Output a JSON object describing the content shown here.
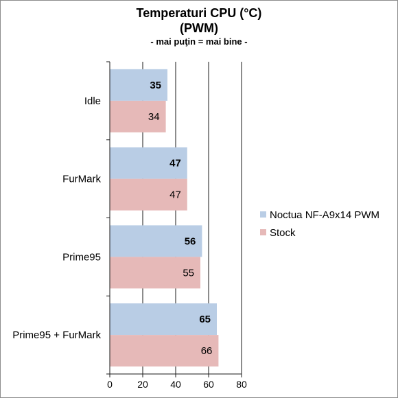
{
  "chart_data": {
    "type": "bar",
    "orientation": "horizontal",
    "title": "Temperaturi CPU (°C)",
    "subtitle": "(PWM)",
    "note": "- mai puţin = mai bine -",
    "categories": [
      "Idle",
      "FurMark",
      "Prime95",
      "Prime95 + FurMark"
    ],
    "series": [
      {
        "name": "Noctua NF-A9x14 PWM",
        "values": [
          35,
          47,
          56,
          65
        ],
        "color": "#b9cde5",
        "bold_labels": true
      },
      {
        "name": "Stock",
        "values": [
          34,
          47,
          55,
          66
        ],
        "color": "#e6b9b8",
        "bold_labels": false
      }
    ],
    "xlim": [
      0,
      80
    ],
    "ticks": [
      0,
      20,
      40,
      60,
      80
    ],
    "grid": true,
    "legend": "right"
  }
}
